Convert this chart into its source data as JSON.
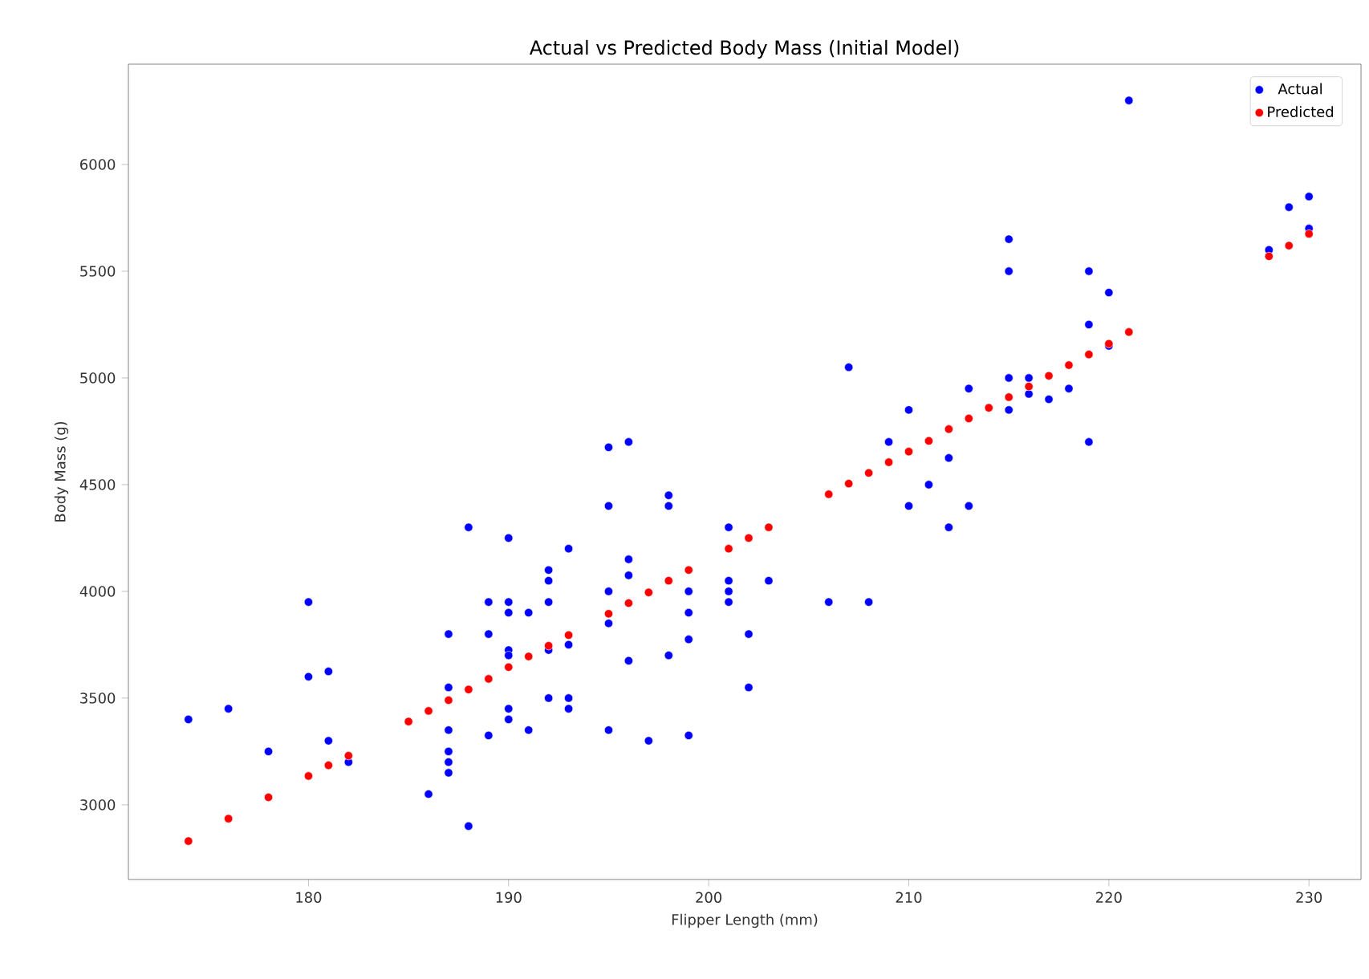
{
  "chart_data": {
    "type": "scatter",
    "title": "Actual vs Predicted Body Mass (Initial Model)",
    "xlabel": "Flipper Length (mm)",
    "ylabel": "Body Mass (g)",
    "xlim": [
      171,
      232.6
    ],
    "ylim": [
      2650,
      6470
    ],
    "xticks": [
      180,
      190,
      200,
      210,
      220,
      230
    ],
    "yticks": [
      3000,
      3500,
      4000,
      4500,
      5000,
      5500,
      6000
    ],
    "grid": false,
    "legend": "top right",
    "marker": "circle",
    "series": [
      {
        "name": "Actual",
        "color": "#0000ff",
        "x": [
          174,
          176,
          178,
          180,
          180,
          181,
          181,
          182,
          186,
          187,
          187,
          187,
          187,
          187,
          187,
          188,
          188,
          189,
          189,
          189,
          190,
          190,
          190,
          190,
          190,
          190,
          190,
          191,
          191,
          192,
          192,
          192,
          192,
          192,
          193,
          193,
          193,
          193,
          195,
          195,
          195,
          195,
          195,
          196,
          196,
          196,
          196,
          197,
          198,
          198,
          198,
          199,
          199,
          199,
          199,
          201,
          201,
          201,
          201,
          202,
          202,
          203,
          206,
          207,
          208,
          209,
          210,
          210,
          211,
          212,
          212,
          213,
          213,
          215,
          215,
          215,
          215,
          216,
          216,
          217,
          218,
          219,
          219,
          219,
          220,
          220,
          221,
          228,
          229,
          230,
          230
        ],
        "values": [
          3400,
          3450,
          3250,
          3950,
          3600,
          3625,
          3300,
          3200,
          3050,
          3800,
          3550,
          3350,
          3250,
          3200,
          3150,
          4300,
          2900,
          3950,
          3800,
          3325,
          4250,
          3950,
          3900,
          3725,
          3700,
          3450,
          3400,
          3900,
          3350,
          4100,
          4050,
          3950,
          3725,
          3500,
          4200,
          3750,
          3500,
          3450,
          4675,
          4400,
          4000,
          3850,
          3350,
          4700,
          4150,
          4075,
          3675,
          3300,
          4450,
          4400,
          3700,
          4000,
          3900,
          3775,
          3325,
          4300,
          4050,
          4000,
          3950,
          3800,
          3550,
          4050,
          3950,
          5050,
          3950,
          4700,
          4850,
          4400,
          4500,
          4625,
          4300,
          4950,
          4400,
          5650,
          5500,
          5000,
          4850,
          5000,
          4925,
          4900,
          4950,
          5500,
          5250,
          4700,
          5400,
          5150,
          6300,
          5600,
          5800,
          5850,
          5700
        ]
      },
      {
        "name": "Predicted",
        "color": "#ff0000",
        "x": [
          174,
          176,
          178,
          180,
          181,
          182,
          185,
          186,
          187,
          188,
          189,
          190,
          191,
          192,
          193,
          195,
          196,
          197,
          198,
          199,
          201,
          202,
          203,
          206,
          207,
          208,
          209,
          210,
          211,
          212,
          213,
          214,
          215,
          216,
          217,
          218,
          219,
          220,
          221,
          228,
          229,
          230
        ],
        "values": [
          2830,
          2935,
          3035,
          3135,
          3185,
          3230,
          3390,
          3440,
          3490,
          3540,
          3590,
          3645,
          3695,
          3745,
          3795,
          3895,
          3945,
          3995,
          4050,
          4100,
          4200,
          4250,
          4300,
          4455,
          4505,
          4555,
          4605,
          4655,
          4705,
          4760,
          4810,
          4860,
          4910,
          4960,
          5010,
          5060,
          5110,
          5160,
          5215,
          5570,
          5620,
          5675
        ]
      }
    ]
  }
}
